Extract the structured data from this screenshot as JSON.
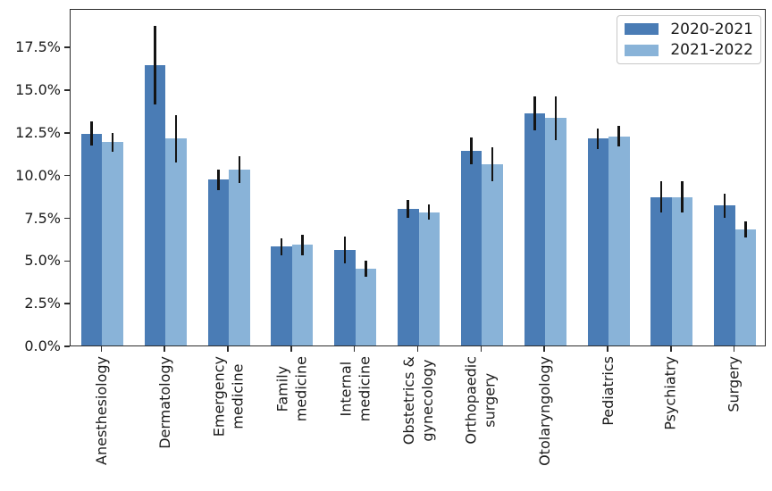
{
  "chart_data": {
    "type": "bar",
    "title": "",
    "xlabel": "",
    "ylabel": "",
    "grid": false,
    "legend_position": "upper right",
    "categories": [
      "Anesthesiology",
      "Dermatology",
      "Emergency\nmedicine",
      "Family\nmedicine",
      "Internal\nmedicine",
      "Obstetrics &\ngynecology",
      "Orthopaedic\nsurgery",
      "Otolaryngology",
      "Pediatrics",
      "Psychiatry",
      "Surgery"
    ],
    "series": [
      {
        "name": "2020-2021",
        "color": "#4a7cb5",
        "values": [
          12.4,
          16.4,
          9.7,
          5.8,
          5.6,
          8.0,
          11.4,
          13.6,
          12.1,
          8.7,
          8.2
        ],
        "errors": [
          0.7,
          2.3,
          0.6,
          0.5,
          0.8,
          0.5,
          0.8,
          1.0,
          0.6,
          0.9,
          0.7
        ]
      },
      {
        "name": "2021-2022",
        "color": "#89b3d8",
        "values": [
          11.9,
          12.1,
          10.3,
          5.9,
          4.5,
          7.8,
          10.6,
          13.3,
          12.25,
          8.7,
          6.8
        ],
        "errors": [
          0.55,
          1.4,
          0.8,
          0.6,
          0.45,
          0.45,
          1.0,
          1.3,
          0.6,
          0.9,
          0.45
        ]
      }
    ],
    "ytick_labels": [
      "0.0%",
      "2.5%",
      "5.0%",
      "7.5%",
      "10.0%",
      "12.5%",
      "15.0%",
      "17.5%"
    ],
    "ytick_values": [
      0,
      2.5,
      5,
      7.5,
      10,
      12.5,
      15,
      17.5
    ],
    "ylim": [
      0,
      19.75
    ],
    "error_bar_color": "#141414",
    "axis_color": "#2b2b2b"
  }
}
